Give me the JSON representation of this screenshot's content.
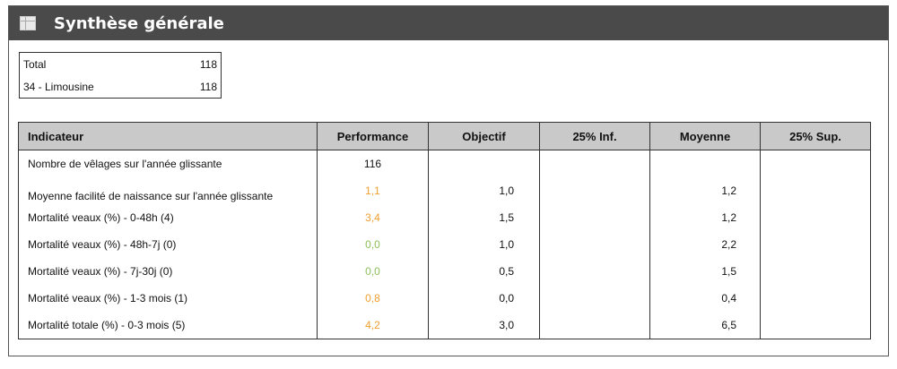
{
  "header": {
    "icon": "table-icon",
    "title": "Synthèse générale"
  },
  "summary": [
    {
      "label": "Total",
      "value": "118"
    },
    {
      "label": "34 - Limousine",
      "value": "118"
    }
  ],
  "table": {
    "columns": [
      "Indicateur",
      "Performance",
      "Objectif",
      "25% Inf.",
      "Moyenne",
      "25% Sup."
    ],
    "rows": [
      {
        "indicateur": "Nombre de vêlages sur l'année glissante",
        "performance": "116",
        "perf_color": "#111111",
        "objectif": "",
        "inf": "",
        "moyenne": "",
        "sup": ""
      },
      {
        "indicateur": "Moyenne facilité de naissance sur l'année glissante",
        "performance": "1,1",
        "perf_color": "#f0a030",
        "objectif": "1,0",
        "inf": "",
        "moyenne": "1,2",
        "sup": ""
      },
      {
        "indicateur": "Mortalité veaux (%) - 0-48h (4)",
        "performance": "3,4",
        "perf_color": "#f0a030",
        "objectif": "1,5",
        "inf": "",
        "moyenne": "1,2",
        "sup": ""
      },
      {
        "indicateur": "Mortalité veaux (%) - 48h-7j (0)",
        "performance": "0,0",
        "perf_color": "#8dc05a",
        "objectif": "1,0",
        "inf": "",
        "moyenne": "2,2",
        "sup": ""
      },
      {
        "indicateur": "Mortalité veaux (%) -  7j-30j (0)",
        "performance": "0,0",
        "perf_color": "#8dc05a",
        "objectif": "0,5",
        "inf": "",
        "moyenne": "1,5",
        "sup": ""
      },
      {
        "indicateur": "Mortalité veaux (%) -  1-3 mois (1)",
        "performance": "0,8",
        "perf_color": "#f0a030",
        "objectif": "0,0",
        "inf": "",
        "moyenne": "0,4",
        "sup": ""
      },
      {
        "indicateur": "Mortalité totale (%) -  0-3 mois (5)",
        "performance": "4,2",
        "perf_color": "#f0a030",
        "objectif": "3,0",
        "inf": "",
        "moyenne": "6,5",
        "sup": ""
      }
    ]
  }
}
